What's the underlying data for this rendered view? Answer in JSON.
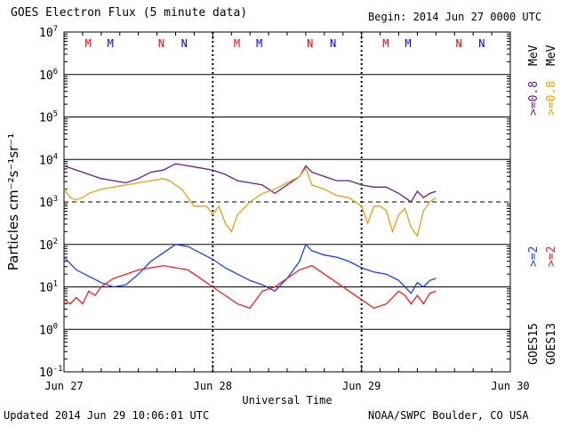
{
  "header": {
    "title": "GOES Electron Flux (5 minute data)",
    "begin": "Begin: 2014 Jun 27 0000 UTC"
  },
  "footer": {
    "updated": "Updated 2014 Jun 29 10:06:01 UTC",
    "credit": "NOAA/SWPC Boulder, CO USA"
  },
  "colors": {
    "purple": "#6a1a9a",
    "orange": "#e8a010",
    "blue": "#1a3cff",
    "red": "#ff1a1a",
    "mark_red": "#ff0000",
    "mark_blue": "#0000ff"
  },
  "chart_data": {
    "type": "line",
    "xlabel": "Universal Time",
    "ylabel": "Particles cm⁻²s⁻¹sr⁻¹",
    "x_ticks": [
      "Jun 27",
      "Jun 28",
      "Jun 29",
      "Jun 30"
    ],
    "xlim": [
      0,
      72
    ],
    "ylim_log10": [
      -1,
      7
    ],
    "y_ticks": [
      {
        "base": "10",
        "exp": "7"
      },
      {
        "base": "10",
        "exp": "6"
      },
      {
        "base": "10",
        "exp": "5"
      },
      {
        "base": "10",
        "exp": "4"
      },
      {
        "base": "10",
        "exp": "3"
      },
      {
        "base": "10",
        "exp": "2"
      },
      {
        "base": "10",
        "exp": "1"
      },
      {
        "base": "10",
        "exp": "0"
      },
      {
        "base": "10",
        "exp": "-1"
      }
    ],
    "threshold_log10": 3,
    "grid": "horizontal at every decade",
    "legend_right": [
      {
        "text": "GOES15",
        "color": "#000000"
      },
      {
        "text": ">=2",
        "color": "#1a3cff"
      },
      {
        "text": ">=0.8",
        "color": "#6a1a9a"
      },
      {
        "text": "MeV",
        "color": "#000000"
      },
      {
        "text": "GOES13",
        "color": "#000000"
      },
      {
        "text": ">=2",
        "color": "#ff1a1a"
      },
      {
        "text": ">=0.8",
        "color": "#e8a010"
      },
      {
        "text": "MeV",
        "color": "#000000"
      }
    ],
    "markers": [
      {
        "label": "M",
        "hour": 3.9,
        "color": "red"
      },
      {
        "label": "M",
        "hour": 7.5,
        "color": "blue"
      },
      {
        "label": "N",
        "hour": 15.7,
        "color": "red"
      },
      {
        "label": "N",
        "hour": 19.4,
        "color": "blue"
      },
      {
        "label": "M",
        "hour": 27.9,
        "color": "red"
      },
      {
        "label": "M",
        "hour": 31.5,
        "color": "blue"
      },
      {
        "label": "N",
        "hour": 39.7,
        "color": "red"
      },
      {
        "label": "N",
        "hour": 43.4,
        "color": "blue"
      },
      {
        "label": "M",
        "hour": 51.9,
        "color": "red"
      },
      {
        "label": "M",
        "hour": 55.5,
        "color": "blue"
      },
      {
        "label": "N",
        "hour": 63.7,
        "color": "red"
      },
      {
        "label": "N",
        "hour": 67.4,
        "color": "blue"
      }
    ],
    "series": [
      {
        "name": "GOES15 >=0.8 MeV",
        "color": "purple",
        "x": [
          0,
          2,
          4,
          6,
          8,
          10,
          12,
          14,
          16,
          18,
          20,
          22,
          24,
          26,
          28,
          30,
          32,
          34,
          36,
          37,
          38,
          39,
          40,
          42,
          44,
          46,
          48,
          50,
          52,
          54,
          55,
          56,
          57,
          58,
          59,
          60
        ],
        "log10": [
          3.85,
          3.75,
          3.65,
          3.55,
          3.5,
          3.45,
          3.55,
          3.7,
          3.75,
          3.9,
          3.85,
          3.8,
          3.75,
          3.65,
          3.5,
          3.45,
          3.4,
          3.2,
          3.4,
          3.5,
          3.6,
          3.85,
          3.7,
          3.6,
          3.5,
          3.5,
          3.4,
          3.35,
          3.35,
          3.2,
          3.1,
          3.0,
          3.25,
          3.1,
          3.2,
          3.25
        ]
      },
      {
        "name": "GOES13 >=0.8 MeV",
        "color": "orange",
        "x": [
          0,
          1,
          2,
          3,
          4,
          6,
          8,
          10,
          12,
          14,
          16,
          17,
          18,
          19,
          20,
          21,
          22,
          23,
          24,
          25,
          26,
          27,
          28,
          30,
          32,
          34,
          36,
          38,
          39,
          40,
          42,
          44,
          46,
          48,
          49,
          50,
          51,
          52,
          53,
          54,
          55,
          56,
          57,
          58,
          59,
          60
        ],
        "log10": [
          3.3,
          3.1,
          3.05,
          3.1,
          3.2,
          3.3,
          3.35,
          3.4,
          3.45,
          3.5,
          3.55,
          3.5,
          3.4,
          3.3,
          3.1,
          2.9,
          2.9,
          2.9,
          2.7,
          2.9,
          2.5,
          2.3,
          2.7,
          3.0,
          3.2,
          3.3,
          3.45,
          3.6,
          3.8,
          3.4,
          3.3,
          3.15,
          3.1,
          2.9,
          2.5,
          2.9,
          2.9,
          2.8,
          2.3,
          2.7,
          2.85,
          2.4,
          2.2,
          2.8,
          3.0,
          3.1
        ]
      },
      {
        "name": "GOES15 >=2 MeV",
        "color": "blue",
        "x": [
          0,
          2,
          4,
          6,
          8,
          10,
          12,
          14,
          16,
          18,
          20,
          22,
          24,
          26,
          28,
          30,
          32,
          34,
          36,
          37,
          38,
          39,
          40,
          42,
          44,
          46,
          48,
          50,
          52,
          54,
          55,
          56,
          57,
          58,
          59,
          60
        ],
        "log10": [
          1.7,
          1.4,
          1.25,
          1.1,
          1.0,
          1.05,
          1.3,
          1.6,
          1.8,
          2.0,
          1.95,
          1.8,
          1.65,
          1.45,
          1.3,
          1.15,
          1.05,
          0.9,
          1.2,
          1.4,
          1.6,
          2.0,
          1.85,
          1.75,
          1.7,
          1.6,
          1.45,
          1.35,
          1.3,
          1.15,
          1.0,
          0.85,
          1.1,
          1.0,
          1.15,
          1.2
        ]
      },
      {
        "name": "GOES13 >=2 MeV",
        "color": "red",
        "x": [
          0,
          1,
          2,
          3,
          4,
          5,
          6,
          8,
          10,
          12,
          14,
          16,
          18,
          20,
          22,
          24,
          26,
          28,
          30,
          32,
          34,
          36,
          38,
          40,
          42,
          44,
          46,
          48,
          50,
          52,
          54,
          55,
          56,
          57,
          58,
          59,
          60
        ],
        "log10": [
          0.7,
          0.6,
          0.75,
          0.6,
          0.9,
          0.8,
          1.0,
          1.2,
          1.3,
          1.4,
          1.45,
          1.5,
          1.45,
          1.4,
          1.2,
          1.0,
          0.8,
          0.6,
          0.5,
          0.9,
          1.0,
          1.2,
          1.4,
          1.5,
          1.3,
          1.1,
          0.9,
          0.7,
          0.5,
          0.6,
          0.9,
          0.8,
          0.6,
          0.8,
          0.6,
          0.85,
          0.9
        ]
      }
    ]
  }
}
